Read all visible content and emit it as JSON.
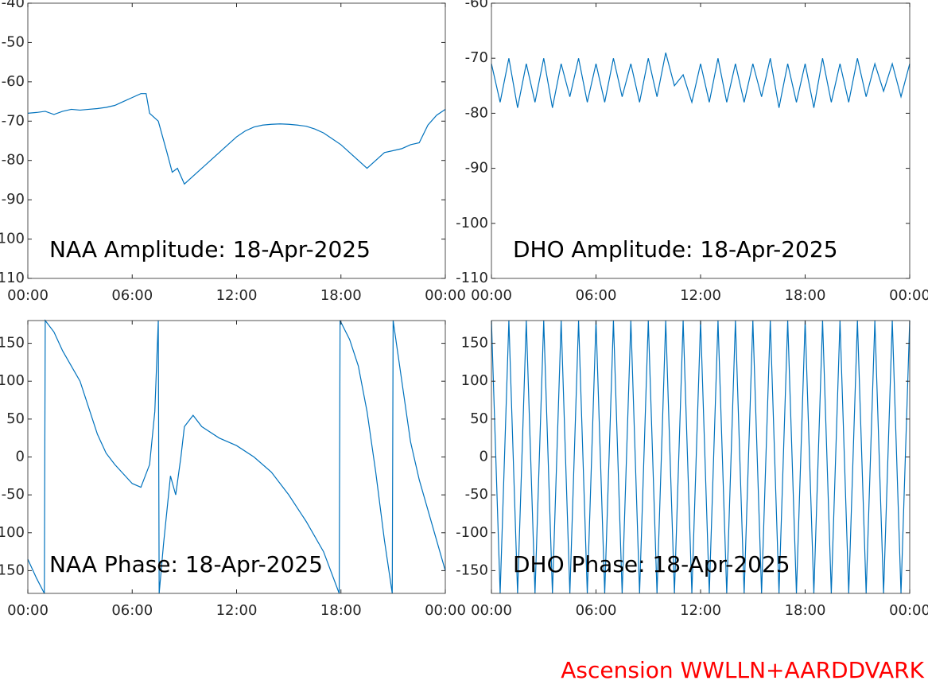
{
  "chart_data": [
    {
      "type": "line",
      "title": "NAA Amplitude: 18-Apr-2025",
      "color": "#0072bd",
      "x": [
        0,
        0.5,
        1,
        1.5,
        2,
        2.5,
        3,
        3.5,
        4,
        4.5,
        5,
        5.5,
        6,
        6.5,
        6.8,
        7,
        7.5,
        8,
        8.3,
        8.6,
        9,
        9.5,
        10,
        10.5,
        11,
        11.5,
        12,
        12.5,
        13,
        13.5,
        14,
        14.5,
        15,
        15.5,
        16,
        16.5,
        17,
        17.5,
        18,
        18.5,
        19,
        19.5,
        20,
        20.5,
        21,
        21.5,
        22,
        22.5,
        23,
        23.5,
        24
      ],
      "values": [
        -68,
        -67.8,
        -67.5,
        -68.3,
        -67.5,
        -67,
        -67.2,
        -67,
        -66.8,
        -66.5,
        -66,
        -65,
        -64,
        -63,
        -63,
        -68,
        -70,
        -78,
        -83,
        -82,
        -86,
        -84,
        -82,
        -80,
        -78,
        -76,
        -74,
        -72.5,
        -71.5,
        -71,
        -70.8,
        -70.7,
        -70.8,
        -71,
        -71.3,
        -72,
        -73,
        -74.5,
        -76,
        -78,
        -80,
        -82,
        -80,
        -78,
        -77.5,
        -77,
        -76,
        -75.5,
        -71,
        -68.5,
        -67
      ],
      "xlim": [
        0,
        24
      ],
      "ylim": [
        -110,
        -40
      ],
      "xticks": [
        {
          "value": 0,
          "label": "00:00"
        },
        {
          "value": 6,
          "label": "06:00"
        },
        {
          "value": 12,
          "label": "12:00"
        },
        {
          "value": 18,
          "label": "18:00"
        },
        {
          "value": 24,
          "label": "00:00"
        }
      ],
      "yticks": [
        -110,
        -100,
        -90,
        -80,
        -70,
        -60,
        -50,
        -40
      ]
    },
    {
      "type": "line",
      "title": "DHO Amplitude: 18-Apr-2025",
      "color": "#0072bd",
      "x": [
        0,
        0.5,
        1,
        1.5,
        2,
        2.5,
        3,
        3.5,
        4,
        4.5,
        5,
        5.5,
        6,
        6.5,
        7,
        7.5,
        8,
        8.5,
        9,
        9.5,
        10,
        10.5,
        11,
        11.5,
        12,
        12.5,
        13,
        13.5,
        14,
        14.5,
        15,
        15.5,
        16,
        16.5,
        17,
        17.5,
        18,
        18.5,
        19,
        19.5,
        20,
        20.5,
        21,
        21.5,
        22,
        22.5,
        23,
        23.5,
        24
      ],
      "values": [
        -71,
        -78,
        -70,
        -79,
        -71,
        -78,
        -70,
        -79,
        -71,
        -77,
        -70,
        -78,
        -71,
        -78,
        -70,
        -77,
        -71,
        -78,
        -70,
        -77,
        -69,
        -75,
        -73,
        -78,
        -71,
        -78,
        -70,
        -78,
        -71,
        -78,
        -71,
        -77,
        -70,
        -79,
        -71,
        -78,
        -71,
        -79,
        -70,
        -78,
        -71,
        -78,
        -70,
        -77,
        -71,
        -76,
        -71,
        -77,
        -71
      ],
      "xlim": [
        0,
        24
      ],
      "ylim": [
        -110,
        -60
      ],
      "xticks": [
        {
          "value": 0,
          "label": "00:00"
        },
        {
          "value": 6,
          "label": "06:00"
        },
        {
          "value": 12,
          "label": "12:00"
        },
        {
          "value": 18,
          "label": "18:00"
        },
        {
          "value": 24,
          "label": "00:00"
        }
      ],
      "yticks": [
        -110,
        -100,
        -90,
        -80,
        -70,
        -60
      ]
    },
    {
      "type": "line",
      "title": "NAA Phase: 18-Apr-2025",
      "color": "#0072bd",
      "x": [
        0,
        0.5,
        0.95,
        1,
        1.5,
        2,
        3,
        4,
        4.5,
        5,
        6,
        6.5,
        7,
        7.3,
        7.5,
        7.55,
        7.8,
        8.2,
        8.5,
        8.8,
        9,
        9.5,
        10,
        11,
        12,
        13,
        14,
        15,
        16,
        17,
        17.9,
        17.95,
        18.5,
        19,
        19.5,
        20,
        20.5,
        20.95,
        21,
        21.5,
        22,
        22.5,
        23,
        23.5,
        24
      ],
      "values": [
        -135,
        -160,
        -180,
        180,
        165,
        140,
        100,
        30,
        5,
        -10,
        -35,
        -40,
        -10,
        60,
        180,
        -180,
        -115,
        -25,
        -50,
        0,
        40,
        55,
        40,
        25,
        15,
        0,
        -20,
        -50,
        -85,
        -125,
        -180,
        180,
        155,
        120,
        60,
        -20,
        -110,
        -180,
        180,
        100,
        20,
        -30,
        -70,
        -110,
        -150
      ],
      "xlim": [
        0,
        24
      ],
      "ylim": [
        -180,
        180
      ],
      "xticks": [
        {
          "value": 0,
          "label": "00:00"
        },
        {
          "value": 6,
          "label": "06:00"
        },
        {
          "value": 12,
          "label": "12:00"
        },
        {
          "value": 18,
          "label": "18:00"
        },
        {
          "value": 24,
          "label": "00:00"
        }
      ],
      "yticks": [
        -150,
        -100,
        -50,
        0,
        50,
        100,
        150
      ]
    },
    {
      "type": "line",
      "title": "DHO Phase: 18-Apr-2025",
      "color": "#0072bd",
      "x": [
        0,
        0.5,
        1,
        1.5,
        2,
        2.5,
        3,
        3.5,
        4,
        4.5,
        5,
        5.5,
        6,
        6.5,
        7,
        7.5,
        8,
        8.5,
        9,
        9.5,
        10,
        10.5,
        11,
        11.5,
        12,
        12.5,
        13,
        13.5,
        14,
        14.5,
        15,
        15.5,
        16,
        16.5,
        17,
        17.5,
        18,
        18.5,
        19,
        19.5,
        20,
        20.5,
        21,
        21.5,
        22,
        22.5,
        23,
        23.5,
        24
      ],
      "values": [
        180,
        -180,
        180,
        -180,
        180,
        -180,
        180,
        -180,
        180,
        -180,
        180,
        -180,
        180,
        -180,
        180,
        -180,
        180,
        -180,
        180,
        -180,
        180,
        -180,
        180,
        -180,
        180,
        -180,
        180,
        -180,
        180,
        -180,
        180,
        -180,
        180,
        -180,
        180,
        -180,
        180,
        -180,
        180,
        -180,
        180,
        -180,
        180,
        -180,
        180,
        -180,
        180,
        -180,
        180
      ],
      "xlim": [
        0,
        24
      ],
      "ylim": [
        -180,
        180
      ],
      "xticks": [
        {
          "value": 0,
          "label": "00:00"
        },
        {
          "value": 6,
          "label": "06:00"
        },
        {
          "value": 12,
          "label": "12:00"
        },
        {
          "value": 18,
          "label": "18:00"
        },
        {
          "value": 24,
          "label": "00:00"
        }
      ],
      "yticks": [
        -150,
        -100,
        -50,
        0,
        50,
        100,
        150
      ]
    }
  ],
  "footer": {
    "text": "Ascension WWLLN+AARDDVARK",
    "color": "#ff0000"
  }
}
